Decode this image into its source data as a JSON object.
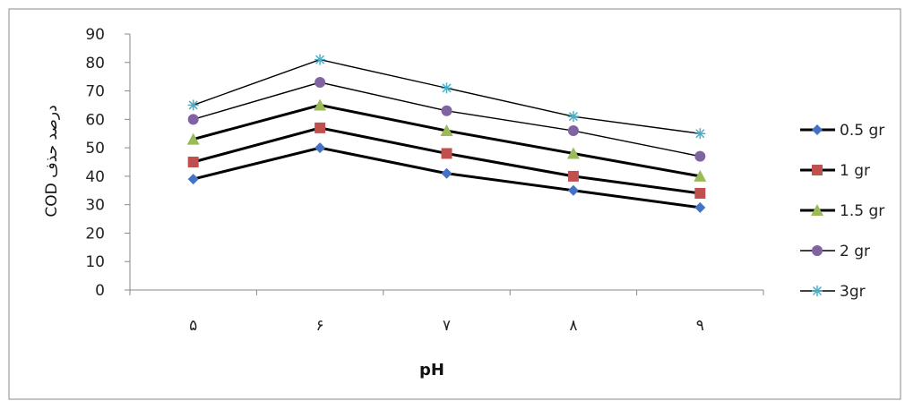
{
  "chart_data": {
    "type": "line",
    "xlabel": "pH",
    "ylabel": "COD درصد حذف",
    "categories": [
      "۵",
      "۶",
      "۷",
      "۸",
      "۹"
    ],
    "ylim": [
      0,
      90
    ],
    "yticks": [
      0,
      10,
      20,
      30,
      40,
      50,
      60,
      70,
      80,
      90
    ],
    "grid": false,
    "legend_position": "right",
    "series": [
      {
        "name": "0.5 gr",
        "values": [
          39,
          50,
          41,
          35,
          29
        ],
        "color": "#4472C4",
        "marker": "diamond",
        "line_width": "thick"
      },
      {
        "name": "1 gr",
        "values": [
          45,
          57,
          48,
          40,
          34
        ],
        "color": "#C0504D",
        "marker": "square",
        "line_width": "thick"
      },
      {
        "name": "1.5 gr",
        "values": [
          53,
          65,
          56,
          48,
          40
        ],
        "color": "#9BBB59",
        "marker": "triangle",
        "line_width": "thick"
      },
      {
        "name": "2 gr",
        "values": [
          60,
          73,
          63,
          56,
          47
        ],
        "color": "#8064A2",
        "marker": "circle",
        "line_width": "thin"
      },
      {
        "name": "3gr",
        "values": [
          65,
          81,
          71,
          61,
          55
        ],
        "color": "#4BACC6",
        "marker": "asterisk",
        "line_width": "thin"
      }
    ]
  }
}
